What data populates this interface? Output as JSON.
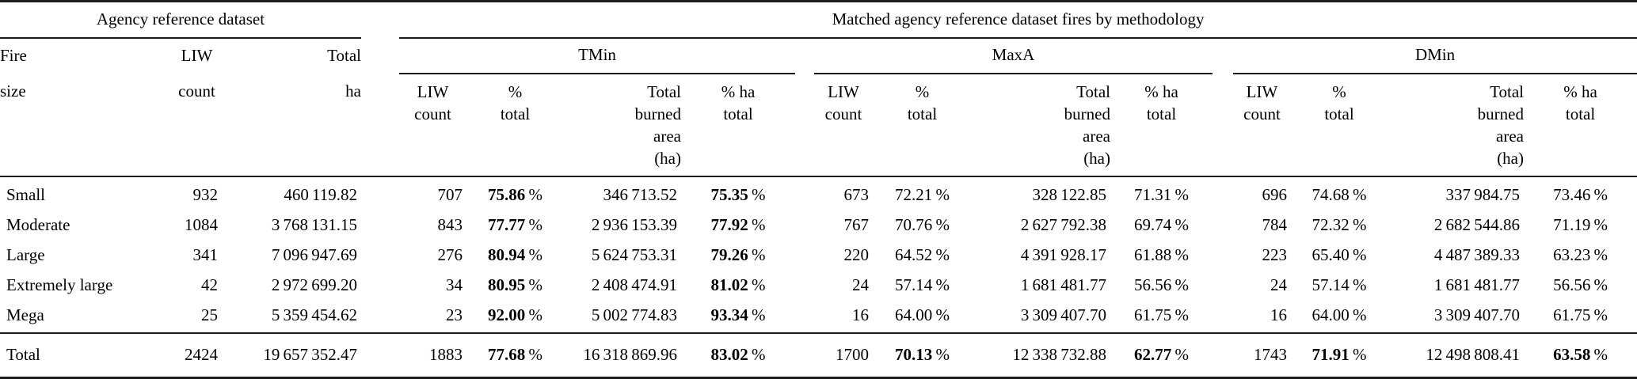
{
  "table": {
    "group_headers": {
      "agency": "Agency reference dataset",
      "matched": "Matched agency reference dataset fires by methodology"
    },
    "stub_header": [
      {
        "line1": "Fire",
        "line2": "size"
      },
      {
        "line1": "LIW",
        "line2": "count"
      },
      {
        "line1": "Total",
        "line2": "ha"
      }
    ],
    "methodologies": [
      {
        "name": "TMin"
      },
      {
        "name": "MaxA"
      },
      {
        "name": "DMin"
      }
    ],
    "method_subheaders": [
      {
        "lines": [
          "LIW",
          "count"
        ]
      },
      {
        "lines": [
          "%",
          "total"
        ]
      },
      {
        "lines": [
          "Total",
          "burned",
          "area",
          "(ha)"
        ]
      },
      {
        "lines": [
          "% ha",
          "total"
        ]
      }
    ],
    "percent_suffix": "%",
    "rows": [
      {
        "fire_size": "Small",
        "agency": {
          "liw_count": "932",
          "total_ha": "460 119.82"
        },
        "methods": [
          {
            "liw_count": "707",
            "pct_total": "75.86",
            "pct_total_bold": true,
            "burned_area": "346 713.52",
            "pct_ha": "75.35",
            "pct_ha_bold": true
          },
          {
            "liw_count": "673",
            "pct_total": "72.21",
            "pct_total_bold": false,
            "burned_area": "328 122.85",
            "pct_ha": "71.31",
            "pct_ha_bold": false
          },
          {
            "liw_count": "696",
            "pct_total": "74.68",
            "pct_total_bold": false,
            "burned_area": "337 984.75",
            "pct_ha": "73.46",
            "pct_ha_bold": false
          }
        ]
      },
      {
        "fire_size": "Moderate",
        "agency": {
          "liw_count": "1084",
          "total_ha": "3 768 131.15"
        },
        "methods": [
          {
            "liw_count": "843",
            "pct_total": "77.77",
            "pct_total_bold": true,
            "burned_area": "2 936 153.39",
            "pct_ha": "77.92",
            "pct_ha_bold": true
          },
          {
            "liw_count": "767",
            "pct_total": "70.76",
            "pct_total_bold": false,
            "burned_area": "2 627 792.38",
            "pct_ha": "69.74",
            "pct_ha_bold": false
          },
          {
            "liw_count": "784",
            "pct_total": "72.32",
            "pct_total_bold": false,
            "burned_area": "2 682 544.86",
            "pct_ha": "71.19",
            "pct_ha_bold": false
          }
        ]
      },
      {
        "fire_size": "Large",
        "agency": {
          "liw_count": "341",
          "total_ha": "7 096 947.69"
        },
        "methods": [
          {
            "liw_count": "276",
            "pct_total": "80.94",
            "pct_total_bold": true,
            "burned_area": "5 624 753.31",
            "pct_ha": "79.26",
            "pct_ha_bold": true
          },
          {
            "liw_count": "220",
            "pct_total": "64.52",
            "pct_total_bold": false,
            "burned_area": "4 391 928.17",
            "pct_ha": "61.88",
            "pct_ha_bold": false
          },
          {
            "liw_count": "223",
            "pct_total": "65.40",
            "pct_total_bold": false,
            "burned_area": "4 487 389.33",
            "pct_ha": "63.23",
            "pct_ha_bold": false
          }
        ]
      },
      {
        "fire_size": "Extremely large",
        "agency": {
          "liw_count": "42",
          "total_ha": "2 972 699.20"
        },
        "methods": [
          {
            "liw_count": "34",
            "pct_total": "80.95",
            "pct_total_bold": true,
            "burned_area": "2 408 474.91",
            "pct_ha": "81.02",
            "pct_ha_bold": true
          },
          {
            "liw_count": "24",
            "pct_total": "57.14",
            "pct_total_bold": false,
            "burned_area": "1 681 481.77",
            "pct_ha": "56.56",
            "pct_ha_bold": false
          },
          {
            "liw_count": "24",
            "pct_total": "57.14",
            "pct_total_bold": false,
            "burned_area": "1 681 481.77",
            "pct_ha": "56.56",
            "pct_ha_bold": false
          }
        ]
      },
      {
        "fire_size": "Mega",
        "agency": {
          "liw_count": "25",
          "total_ha": "5 359 454.62"
        },
        "methods": [
          {
            "liw_count": "23",
            "pct_total": "92.00",
            "pct_total_bold": true,
            "burned_area": "5 002 774.83",
            "pct_ha": "93.34",
            "pct_ha_bold": true
          },
          {
            "liw_count": "16",
            "pct_total": "64.00",
            "pct_total_bold": false,
            "burned_area": "3 309 407.70",
            "pct_ha": "61.75",
            "pct_ha_bold": false
          },
          {
            "liw_count": "16",
            "pct_total": "64.00",
            "pct_total_bold": false,
            "burned_area": "3 309 407.70",
            "pct_ha": "61.75",
            "pct_ha_bold": false
          }
        ]
      }
    ],
    "total_row": {
      "fire_size": "Total",
      "agency": {
        "liw_count": "2424",
        "total_ha": "19 657 352.47"
      },
      "methods": [
        {
          "liw_count": "1883",
          "pct_total": "77.68",
          "pct_total_bold": true,
          "burned_area": "16 318 869.96",
          "pct_ha": "83.02",
          "pct_ha_bold": true
        },
        {
          "liw_count": "1700",
          "pct_total": "70.13",
          "pct_total_bold": true,
          "burned_area": "12 338 732.88",
          "pct_ha": "62.77",
          "pct_ha_bold": true
        },
        {
          "liw_count": "1743",
          "pct_total": "71.91",
          "pct_total_bold": true,
          "burned_area": "12 498 808.41",
          "pct_ha": "63.58",
          "pct_ha_bold": true
        }
      ]
    }
  }
}
